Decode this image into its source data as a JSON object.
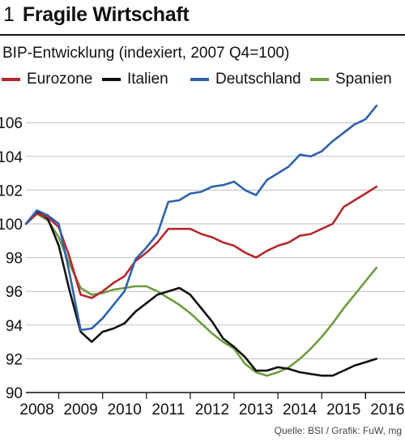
{
  "header": {
    "number": "1",
    "title": "Fragile Wirtschaft"
  },
  "source": "Quelle: BSI / Grafik: FuW, mg",
  "chart_data": {
    "type": "line",
    "title": "Fragile Wirtschaft",
    "subtitle": "BIP-Entwicklung (indexiert, 2007 Q4=100)",
    "xlabel": "",
    "ylabel": "",
    "ylim": [
      90,
      107.5
    ],
    "xlim": [
      2007.75,
      2016.4
    ],
    "yticks": [
      90,
      92,
      94,
      96,
      98,
      100,
      102,
      104,
      106
    ],
    "xticks": [
      2008,
      2009,
      2010,
      2011,
      2012,
      2013,
      2014,
      2015,
      2016
    ],
    "grid": "horizontal",
    "legend_position": "top",
    "series": [
      {
        "name": "Eurozone",
        "color": "#b5282d",
        "x": [
          2007.75,
          2008.0,
          2008.25,
          2008.5,
          2008.75,
          2009.0,
          2009.25,
          2009.5,
          2009.75,
          2010.0,
          2010.25,
          2010.5,
          2010.75,
          2011.0,
          2011.25,
          2011.5,
          2011.75,
          2012.0,
          2012.25,
          2012.5,
          2012.75,
          2013.0,
          2013.25,
          2013.5,
          2013.75,
          2014.0,
          2014.25,
          2014.5,
          2014.75,
          2015.0,
          2015.25,
          2015.5,
          2015.75
        ],
        "values": [
          100.0,
          100.6,
          100.4,
          99.8,
          98.0,
          95.8,
          95.6,
          96.0,
          96.5,
          96.9,
          97.8,
          98.3,
          98.9,
          99.7,
          99.7,
          99.7,
          99.4,
          99.2,
          98.9,
          98.7,
          98.3,
          98.0,
          98.4,
          98.7,
          98.9,
          99.3,
          99.4,
          99.7,
          100.0,
          101.0,
          101.4,
          101.8,
          102.2
        ]
      },
      {
        "name": "Italien",
        "color": "#111111",
        "x": [
          2007.75,
          2008.0,
          2008.25,
          2008.5,
          2008.75,
          2009.0,
          2009.25,
          2009.5,
          2009.75,
          2010.0,
          2010.25,
          2010.5,
          2010.75,
          2011.0,
          2011.25,
          2011.5,
          2011.75,
          2012.0,
          2012.25,
          2012.5,
          2012.75,
          2013.0,
          2013.25,
          2013.5,
          2013.75,
          2014.0,
          2014.25,
          2014.5,
          2014.75,
          2015.0,
          2015.25,
          2015.5,
          2015.75
        ],
        "values": [
          100.0,
          100.7,
          100.3,
          98.7,
          96.0,
          93.6,
          93.0,
          93.6,
          93.8,
          94.1,
          94.8,
          95.3,
          95.8,
          96.0,
          96.2,
          95.8,
          95.0,
          94.2,
          93.2,
          92.7,
          92.1,
          91.3,
          91.3,
          91.5,
          91.4,
          91.2,
          91.1,
          91.0,
          91.0,
          91.3,
          91.6,
          91.8,
          92.0
        ]
      },
      {
        "name": "Deutschland",
        "color": "#2e62ad",
        "x": [
          2007.75,
          2008.0,
          2008.25,
          2008.5,
          2008.75,
          2009.0,
          2009.25,
          2009.5,
          2009.75,
          2010.0,
          2010.25,
          2010.5,
          2010.75,
          2011.0,
          2011.25,
          2011.5,
          2011.75,
          2012.0,
          2012.25,
          2012.5,
          2012.75,
          2013.0,
          2013.25,
          2013.5,
          2013.75,
          2014.0,
          2014.25,
          2014.5,
          2014.75,
          2015.0,
          2015.25,
          2015.5,
          2015.75
        ],
        "values": [
          100.0,
          100.8,
          100.5,
          100.0,
          97.0,
          93.7,
          93.8,
          94.4,
          95.2,
          96.0,
          97.9,
          98.6,
          99.4,
          101.3,
          101.4,
          101.8,
          101.9,
          102.2,
          102.3,
          102.5,
          102.0,
          101.7,
          102.6,
          103.0,
          103.4,
          104.1,
          104.0,
          104.3,
          104.9,
          105.4,
          105.9,
          106.2,
          107.0
        ]
      },
      {
        "name": "Spanien",
        "color": "#6e9c3f",
        "x": [
          2007.75,
          2008.0,
          2008.25,
          2008.5,
          2008.75,
          2009.0,
          2009.25,
          2009.5,
          2009.75,
          2010.0,
          2010.25,
          2010.5,
          2010.75,
          2011.0,
          2011.25,
          2011.5,
          2011.75,
          2012.0,
          2012.25,
          2012.5,
          2012.75,
          2013.0,
          2013.25,
          2013.5,
          2013.75,
          2014.0,
          2014.25,
          2014.5,
          2014.75,
          2015.0,
          2015.25,
          2015.5,
          2015.75
        ],
        "values": [
          100.0,
          100.6,
          100.2,
          99.2,
          97.6,
          96.2,
          95.8,
          95.9,
          96.1,
          96.2,
          96.3,
          96.3,
          96.0,
          95.6,
          95.2,
          94.7,
          94.1,
          93.5,
          93.0,
          92.6,
          91.7,
          91.2,
          91.0,
          91.2,
          91.5,
          92.0,
          92.6,
          93.3,
          94.1,
          95.0,
          95.8,
          96.6,
          97.4
        ]
      }
    ]
  }
}
